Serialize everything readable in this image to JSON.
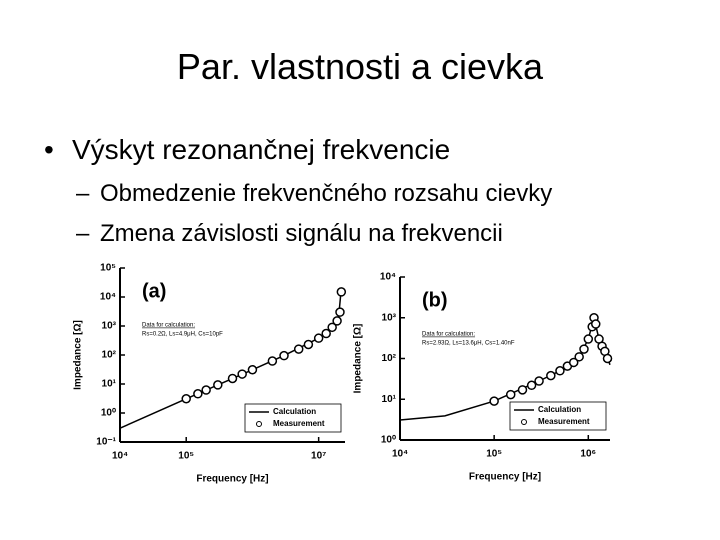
{
  "slide": {
    "title": "Par. vlastnosti a cievka",
    "bullet": "Výskyt rezonančnej frekvencie",
    "subbullets": [
      "Obmedzenie frekvenčného rozsahu cievky",
      "Zmena závislosti signálu na frekvencii"
    ]
  },
  "chart_data": [
    {
      "type": "line",
      "label": "(a)",
      "log_x": true,
      "log_y": true,
      "x_label": "Frequency [Hz]",
      "y_label": "Impedance [Ω]",
      "annotation_title": "Data for calculation:",
      "annotation": "Rs=0.2Ω, Ls=4.9μH, Cs=10pF",
      "xlim": [
        10000,
        25000000
      ],
      "ylim": [
        0.1,
        100000
      ],
      "xticks": [
        {
          "value": 10000,
          "label": "10⁴"
        },
        {
          "value": 100000,
          "label": "10⁵"
        },
        {
          "value": 10000000,
          "label": "10⁷"
        }
      ],
      "yticks": [
        {
          "value": 0.1,
          "label": "10⁻¹"
        },
        {
          "value": 1,
          "label": "10⁰"
        },
        {
          "value": 10,
          "label": "10¹"
        },
        {
          "value": 100,
          "label": "10²"
        },
        {
          "value": 1000,
          "label": "10³"
        },
        {
          "value": 10000,
          "label": "10⁴"
        },
        {
          "value": 100000,
          "label": "10⁵"
        }
      ],
      "series": [
        {
          "name": "Calculation",
          "color": "#000000",
          "x": [
            10000,
            100000,
            1000000,
            3000000,
            10000000,
            15000000,
            20000000,
            22000000
          ],
          "values": [
            0.3,
            3.1,
            31,
            95,
            380,
            700,
            2000,
            20000
          ]
        },
        {
          "name": "Measurement",
          "color": "#000000",
          "x": [
            100000,
            150000,
            200000,
            300000,
            500000,
            700000,
            1000000,
            2000000,
            3000000,
            5000000,
            7000000,
            10000000,
            13000000,
            16000000,
            19000000,
            21000000,
            22000000
          ],
          "values": [
            3.1,
            4.6,
            6.2,
            9.3,
            15.5,
            22,
            31,
            62,
            95,
            160,
            230,
            380,
            550,
            900,
            1500,
            3000,
            15000
          ]
        }
      ]
    },
    {
      "type": "line",
      "label": "(b)",
      "log_x": true,
      "log_y": true,
      "x_label": "Frequency [Hz]",
      "y_label": "Impedance [Ω]",
      "annotation_title": "Data for calculation:",
      "annotation": "Rs=2.93Ω, Ls=13.6μH, Cs=1.40nF",
      "xlim": [
        10000,
        1700000
      ],
      "ylim": [
        1,
        10000
      ],
      "xticks": [
        {
          "value": 10000,
          "label": "10⁴"
        },
        {
          "value": 100000,
          "label": "10⁵"
        },
        {
          "value": 1000000,
          "label": "10⁶"
        }
      ],
      "yticks": [
        {
          "value": 1,
          "label": "10⁰"
        },
        {
          "value": 10,
          "label": "10¹"
        },
        {
          "value": 100,
          "label": "10²"
        },
        {
          "value": 1000,
          "label": "10³"
        },
        {
          "value": 10000,
          "label": "10⁴"
        }
      ],
      "series": [
        {
          "name": "Calculation",
          "color": "#000000",
          "x": [
            10000,
            30000,
            100000,
            300000,
            500000,
            800000,
            1000000,
            1150000,
            1300000,
            1500000,
            1700000
          ],
          "values": [
            3.1,
            3.9,
            9,
            28,
            50,
            110,
            300,
            1000,
            300,
            150,
            70
          ]
        },
        {
          "name": "Measurement",
          "color": "#000000",
          "x": [
            100000,
            150000,
            200000,
            250000,
            300000,
            400000,
            500000,
            600000,
            700000,
            800000,
            900000,
            1000000,
            1100000,
            1150000,
            1200000,
            1300000,
            1400000,
            1500000,
            1600000
          ],
          "values": [
            9,
            13,
            17,
            22,
            28,
            38,
            50,
            65,
            80,
            110,
            170,
            300,
            600,
            1000,
            700,
            300,
            200,
            150,
            100
          ]
        }
      ]
    }
  ]
}
